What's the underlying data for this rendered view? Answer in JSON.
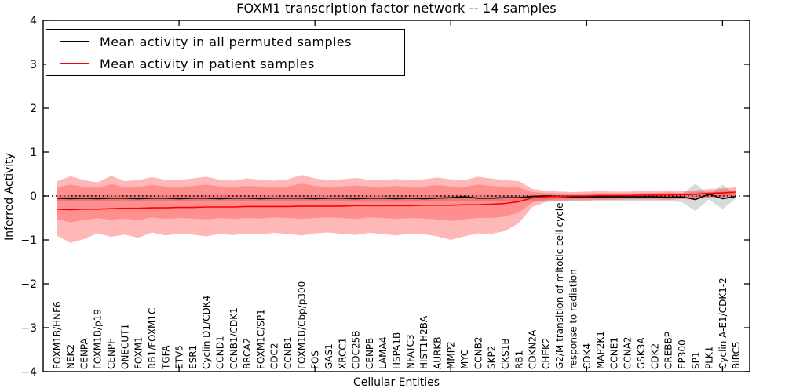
{
  "chart_data": {
    "type": "line",
    "title": "FOXM1 transcription factor network -- 14 samples",
    "xlabel": "Cellular Entities",
    "ylabel": "Inferred Activity",
    "ylim": [
      -4,
      4
    ],
    "ytick_values": [
      -4,
      -3,
      -2,
      -1,
      0,
      1,
      2,
      3,
      4
    ],
    "ytick_labels": [
      "−4",
      "−3",
      "−2",
      "−1",
      "0",
      "1",
      "2",
      "3",
      "4"
    ],
    "xtick_major_values": [
      10,
      20,
      30,
      40,
      50
    ],
    "grid": false,
    "legend_position": "upper left",
    "zero_reference_line": {
      "y": 0,
      "style": "dotted",
      "color": "#000000"
    },
    "categories": [
      "FOXM1B/HNF6",
      "NEK2",
      "CENPA",
      "FOXM1B/p19",
      "CENPF",
      "ONECUT1",
      "FOXM1",
      "RB1/FOXM1C",
      "TGFA",
      "ETV5",
      "ESR1",
      "Cyclin D1/CDK4",
      "CCND1",
      "CCNB1/CDK1",
      "BRCA2",
      "FOXM1C/SP1",
      "CDC2",
      "CCNB1",
      "FOXM1B/Cbp/p300",
      "FOS",
      "GAS1",
      "XRCC1",
      "CDC25B",
      "CENPB",
      "LAMA4",
      "HSPA1B",
      "NFATC3",
      "HIST1H2BA",
      "AURKB",
      "MMP2",
      "MYC",
      "CCNB2",
      "SKP2",
      "CKS1B",
      "RB1",
      "CDKN2A",
      "CHEK2",
      "G2/M transition of mitotic cell cycle",
      "response to radiation",
      "CDK4",
      "MAP2K1",
      "CCNE1",
      "CCNA2",
      "GSK3A",
      "CDK2",
      "CREBBP",
      "EP300",
      "SP1",
      "PLK1",
      "Cyclin A-E1/CDK1-2",
      "BIRC5"
    ],
    "series": [
      {
        "name": "Mean activity in all permuted samples",
        "color": "#000000",
        "values": [
          -0.05,
          -0.06,
          -0.05,
          -0.06,
          -0.05,
          -0.05,
          -0.06,
          -0.05,
          -0.05,
          -0.06,
          -0.05,
          -0.05,
          -0.06,
          -0.05,
          -0.05,
          -0.06,
          -0.05,
          -0.05,
          -0.05,
          -0.06,
          -0.05,
          -0.05,
          -0.06,
          -0.05,
          -0.05,
          -0.06,
          -0.05,
          -0.06,
          -0.05,
          -0.04,
          -0.02,
          -0.05,
          -0.05,
          -0.04,
          -0.04,
          -0.01,
          0.0,
          -0.01,
          -0.02,
          -0.02,
          -0.02,
          -0.02,
          -0.02,
          -0.02,
          -0.02,
          -0.03,
          -0.02,
          -0.08,
          0.04,
          -0.06,
          -0.01
        ]
      },
      {
        "name": "Mean activity in patient samples",
        "color": "#ff0000",
        "values": [
          -0.3,
          -0.31,
          -0.3,
          -0.3,
          -0.29,
          -0.28,
          -0.28,
          -0.27,
          -0.27,
          -0.26,
          -0.26,
          -0.25,
          -0.25,
          -0.25,
          -0.24,
          -0.24,
          -0.24,
          -0.24,
          -0.23,
          -0.23,
          -0.23,
          -0.23,
          -0.22,
          -0.22,
          -0.22,
          -0.22,
          -0.22,
          -0.21,
          -0.21,
          -0.21,
          -0.2,
          -0.2,
          -0.19,
          -0.17,
          -0.13,
          -0.04,
          -0.02,
          -0.01,
          0.0,
          0.0,
          0.01,
          0.01,
          0.01,
          0.02,
          0.02,
          0.02,
          0.03,
          0.04,
          0.06,
          0.07,
          0.09
        ]
      }
    ],
    "bands": [
      {
        "name": "permuted-samples-spread",
        "fill": "#000000",
        "opacity": 0.15,
        "top": [
          0.02,
          0.02,
          0.02,
          0.02,
          0.02,
          0.02,
          0.02,
          0.02,
          0.02,
          0.02,
          0.02,
          0.02,
          0.02,
          0.02,
          0.02,
          0.02,
          0.02,
          0.02,
          0.02,
          0.02,
          0.02,
          0.02,
          0.02,
          0.02,
          0.02,
          0.02,
          0.02,
          0.02,
          0.02,
          0.02,
          0.02,
          0.02,
          0.02,
          0.02,
          0.02,
          0.02,
          0.02,
          0.02,
          0.02,
          0.02,
          0.02,
          0.02,
          0.02,
          0.02,
          0.02,
          0.02,
          0.04,
          0.28,
          0.02,
          0.26,
          0.03
        ],
        "bottom": [
          -0.12,
          -0.12,
          -0.12,
          -0.12,
          -0.12,
          -0.12,
          -0.12,
          -0.12,
          -0.12,
          -0.12,
          -0.12,
          -0.12,
          -0.12,
          -0.12,
          -0.12,
          -0.12,
          -0.12,
          -0.12,
          -0.12,
          -0.12,
          -0.12,
          -0.12,
          -0.12,
          -0.12,
          -0.12,
          -0.12,
          -0.12,
          -0.12,
          -0.12,
          -0.12,
          -0.12,
          -0.12,
          -0.12,
          -0.12,
          -0.12,
          -0.12,
          -0.12,
          -0.12,
          -0.12,
          -0.12,
          -0.12,
          -0.12,
          -0.12,
          -0.12,
          -0.12,
          -0.12,
          -0.14,
          -0.34,
          -0.08,
          -0.3,
          -0.05
        ]
      },
      {
        "name": "patient-samples-outer-spread",
        "fill": "#ff0000",
        "opacity": 0.28,
        "top": [
          0.33,
          0.45,
          0.36,
          0.31,
          0.46,
          0.34,
          0.36,
          0.43,
          0.37,
          0.36,
          0.4,
          0.44,
          0.37,
          0.35,
          0.4,
          0.37,
          0.35,
          0.38,
          0.48,
          0.4,
          0.36,
          0.38,
          0.41,
          0.37,
          0.36,
          0.39,
          0.36,
          0.38,
          0.42,
          0.38,
          0.36,
          0.44,
          0.4,
          0.36,
          0.34,
          0.16,
          0.12,
          0.1,
          0.09,
          0.1,
          0.11,
          0.1,
          0.1,
          0.11,
          0.12,
          0.13,
          0.12,
          0.13,
          0.16,
          0.17,
          0.2
        ],
        "bottom": [
          -0.9,
          -1.07,
          -0.98,
          -0.85,
          -0.93,
          -0.88,
          -0.95,
          -0.83,
          -0.9,
          -0.85,
          -0.88,
          -0.92,
          -0.86,
          -0.89,
          -0.85,
          -0.88,
          -0.84,
          -0.86,
          -0.9,
          -0.85,
          -0.83,
          -0.86,
          -0.89,
          -0.84,
          -0.86,
          -0.9,
          -0.85,
          -0.87,
          -0.92,
          -1.0,
          -0.92,
          -0.85,
          -0.86,
          -0.8,
          -0.62,
          -0.25,
          -0.14,
          -0.11,
          -0.1,
          -0.1,
          -0.09,
          -0.09,
          -0.08,
          -0.08,
          -0.08,
          -0.09,
          -0.07,
          -0.06,
          -0.05,
          -0.04,
          -0.02
        ]
      },
      {
        "name": "patient-samples-inner-spread",
        "fill": "#ff0000",
        "opacity": 0.22,
        "top": [
          0.2,
          0.26,
          0.21,
          0.19,
          0.27,
          0.2,
          0.21,
          0.25,
          0.22,
          0.21,
          0.23,
          0.26,
          0.22,
          0.21,
          0.23,
          0.22,
          0.21,
          0.22,
          0.28,
          0.23,
          0.21,
          0.22,
          0.24,
          0.22,
          0.21,
          0.23,
          0.21,
          0.22,
          0.25,
          0.22,
          0.21,
          0.26,
          0.23,
          0.21,
          0.2,
          0.09,
          0.07,
          0.06,
          0.05,
          0.06,
          0.06,
          0.06,
          0.06,
          0.06,
          0.07,
          0.08,
          0.07,
          0.08,
          0.1,
          0.1,
          0.12
        ],
        "bottom": [
          -0.52,
          -0.6,
          -0.55,
          -0.5,
          -0.54,
          -0.51,
          -0.55,
          -0.49,
          -0.52,
          -0.5,
          -0.51,
          -0.53,
          -0.5,
          -0.52,
          -0.5,
          -0.51,
          -0.49,
          -0.5,
          -0.52,
          -0.5,
          -0.49,
          -0.5,
          -0.52,
          -0.49,
          -0.5,
          -0.52,
          -0.5,
          -0.51,
          -0.53,
          -0.57,
          -0.53,
          -0.5,
          -0.5,
          -0.47,
          -0.38,
          -0.15,
          -0.09,
          -0.07,
          -0.06,
          -0.06,
          -0.06,
          -0.05,
          -0.05,
          -0.05,
          -0.05,
          -0.06,
          -0.04,
          -0.03,
          -0.02,
          -0.01,
          0.0
        ]
      }
    ]
  },
  "legend": {
    "entries": [
      {
        "label": "Mean activity in all permuted samples",
        "color": "#000000"
      },
      {
        "label": "Mean activity in patient samples",
        "color": "#ff0000"
      }
    ]
  }
}
